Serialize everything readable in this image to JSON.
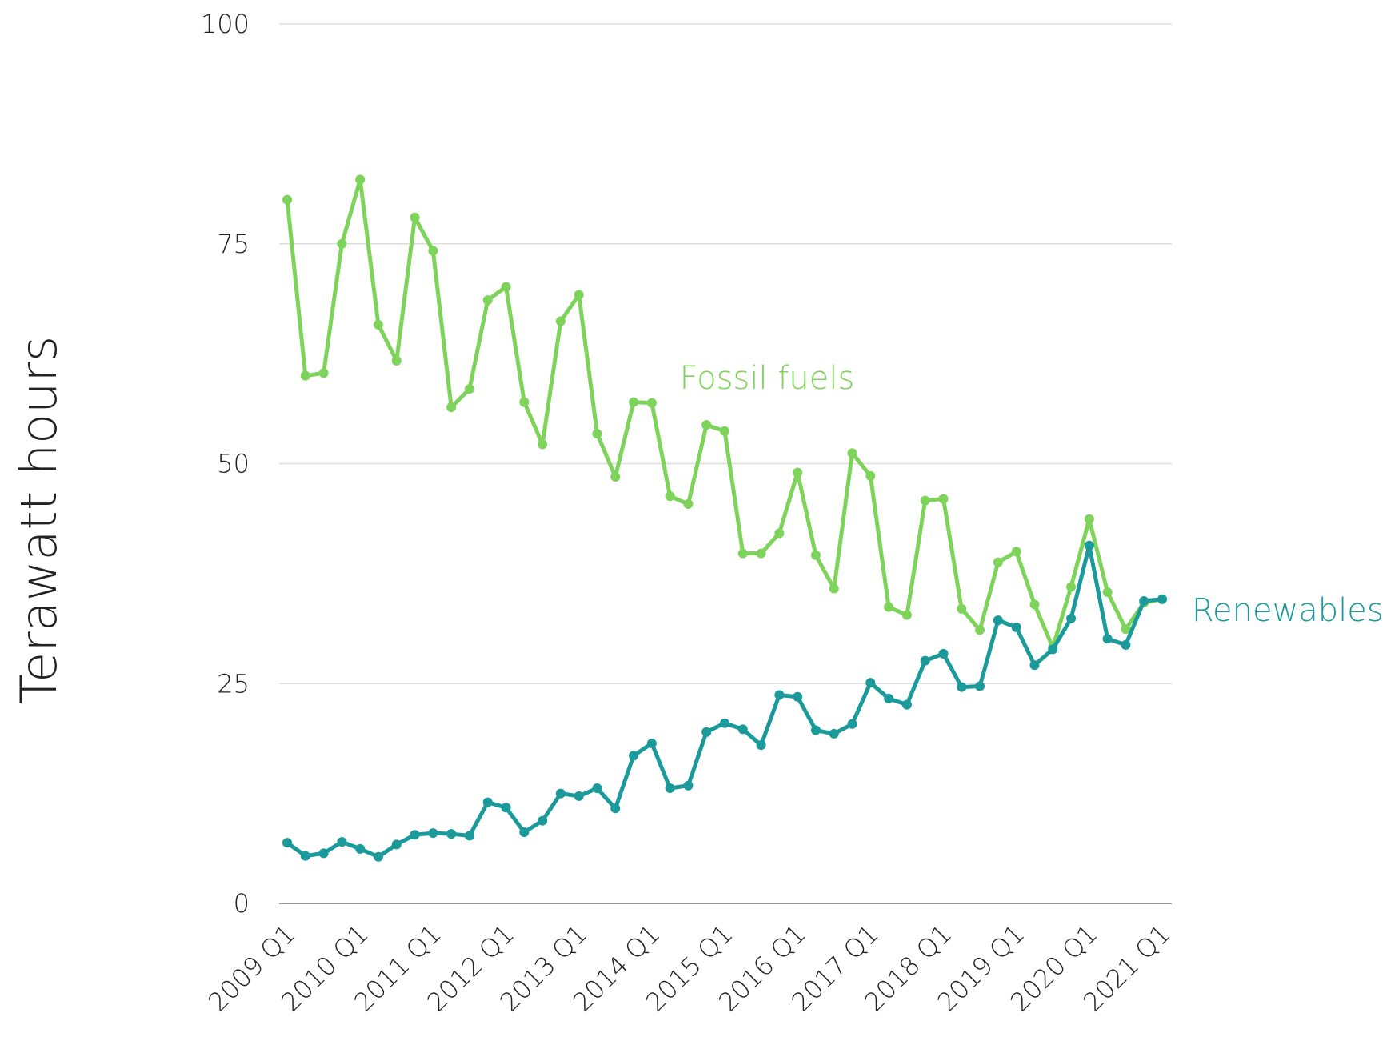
{
  "chart_data": {
    "type": "line",
    "ylabel": "Terawatt hours",
    "categories": [
      "2009 Q1",
      null,
      null,
      null,
      "2010 Q1",
      null,
      null,
      null,
      "2011 Q1",
      null,
      null,
      null,
      "2012 Q1",
      null,
      null,
      null,
      "2013 Q1",
      null,
      null,
      null,
      "2014 Q1",
      null,
      null,
      null,
      "2015 Q1",
      null,
      null,
      null,
      "2016 Q1",
      null,
      null,
      null,
      "2017 Q1",
      null,
      null,
      null,
      "2018 Q1",
      null,
      null,
      null,
      "2019 Q1",
      null,
      null,
      null,
      "2020 Q1",
      null,
      null,
      null,
      "2021 Q1"
    ],
    "series": [
      {
        "name": "Fossil fuels",
        "color": "#7ed35b",
        "values": [
          80,
          60,
          60.3,
          75,
          82.3,
          65.8,
          61.7,
          78,
          74.2,
          56.4,
          58.5,
          68.6,
          70.1,
          57,
          52.2,
          66.2,
          69.2,
          53.4,
          48.5,
          57,
          56.9,
          46.3,
          45.4,
          54.4,
          53.7,
          39.8,
          39.8,
          42.1,
          49,
          39.6,
          35.8,
          51.2,
          48.6,
          33.7,
          32.8,
          45.8,
          46,
          33.5,
          31.1,
          38.8,
          40,
          34,
          29.1,
          36,
          43.7,
          35.4,
          31.2,
          34.2,
          34.6
        ]
      },
      {
        "name": "Renewables",
        "color": "#1a9a9a",
        "values": [
          6.9,
          5.4,
          5.7,
          7,
          6.2,
          5.3,
          6.7,
          7.8,
          8,
          7.9,
          7.7,
          11.5,
          10.9,
          8.1,
          9.4,
          12.5,
          12.2,
          13.1,
          10.8,
          16.8,
          18.2,
          13.1,
          13.4,
          19.5,
          20.5,
          19.8,
          18,
          23.7,
          23.5,
          19.7,
          19.3,
          20.4,
          25.1,
          23.3,
          22.6,
          27.6,
          28.4,
          24.6,
          24.7,
          32.2,
          31.4,
          27.1,
          28.9,
          32.4,
          40.7,
          30.1,
          29.4,
          34.4,
          34.6
        ]
      }
    ],
    "ylim": [
      0,
      100
    ],
    "yticks": [
      0,
      25,
      50,
      75,
      100
    ],
    "grid": true
  }
}
